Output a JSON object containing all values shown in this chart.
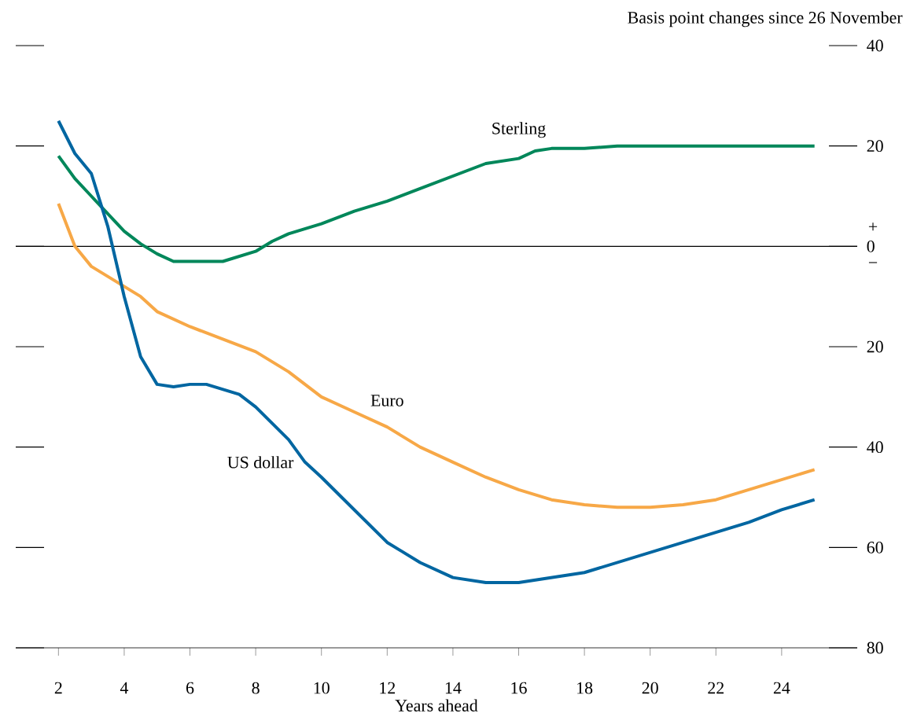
{
  "chart_data": {
    "type": "line",
    "ylabel": "Basis point changes since 26 November",
    "xlabel": "Years ahead",
    "xlim": [
      0.7,
      26.3
    ],
    "ylim": [
      -80,
      40
    ],
    "xticks": [
      2,
      4,
      6,
      8,
      10,
      12,
      14,
      16,
      18,
      20,
      22,
      24
    ],
    "yticks": [
      {
        "value": -80,
        "label": "80"
      },
      {
        "value": -60,
        "label": "60"
      },
      {
        "value": -40,
        "label": "40"
      },
      {
        "value": -20,
        "label": "20"
      },
      0,
      20,
      40
    ],
    "ref_lines": [
      {
        "axis": "y",
        "value": 0,
        "color": "#000000"
      }
    ],
    "annotations": [
      "+",
      "−"
    ],
    "series": [
      {
        "name": "Sterling",
        "color": "#00875a",
        "x": [
          2,
          2.5,
          3,
          3.5,
          4,
          4.5,
          5,
          5.5,
          6,
          7,
          8,
          8.5,
          9,
          10,
          11,
          12,
          13,
          14,
          15,
          16,
          16.5,
          17,
          18,
          19,
          19.5,
          20,
          21,
          22,
          23,
          24,
          25
        ],
        "values": [
          18,
          13.5,
          10,
          6.5,
          3,
          0.5,
          -1.5,
          -3,
          -3,
          -3,
          -1,
          1,
          2.5,
          4.5,
          7,
          9,
          11.5,
          14,
          16.5,
          17.5,
          19,
          19.5,
          19.5,
          20,
          20,
          20,
          20,
          20,
          20,
          20,
          20
        ]
      },
      {
        "name": "Euro",
        "color": "#f7a847",
        "x": [
          2,
          2.5,
          3,
          4,
          4.5,
          5,
          6,
          7,
          8,
          9,
          10,
          11,
          12,
          13,
          14,
          15,
          16,
          17,
          18,
          19,
          20,
          21,
          22,
          23,
          24,
          25
        ],
        "values": [
          8.5,
          0,
          -4,
          -8,
          -10,
          -13,
          -16,
          -18.5,
          -21,
          -25,
          -30,
          -33,
          -36,
          -40,
          -43,
          -46,
          -48.5,
          -50.5,
          -51.5,
          -52,
          -52,
          -51.5,
          -50.5,
          -48.5,
          -46.5,
          -44.5
        ]
      },
      {
        "name": "US dollar",
        "color": "#0066a1",
        "x": [
          2,
          2.5,
          3,
          3.5,
          4,
          4.5,
          5,
          5.5,
          6,
          6.5,
          7,
          7.5,
          8,
          9,
          9.5,
          10,
          11,
          12,
          13,
          14,
          15,
          16,
          17,
          18,
          19,
          20,
          21,
          22,
          23,
          24,
          25
        ],
        "values": [
          25,
          18.5,
          14.5,
          4,
          -10,
          -22,
          -27.5,
          -28,
          -27.5,
          -27.5,
          -28.5,
          -29.5,
          -32,
          -38.5,
          -43,
          -46,
          -52.5,
          -59,
          -63,
          -66,
          -67,
          -67,
          -66,
          -65,
          -63,
          -61,
          -59,
          -57,
          -55,
          -52.5,
          -50.5
        ]
      }
    ]
  }
}
